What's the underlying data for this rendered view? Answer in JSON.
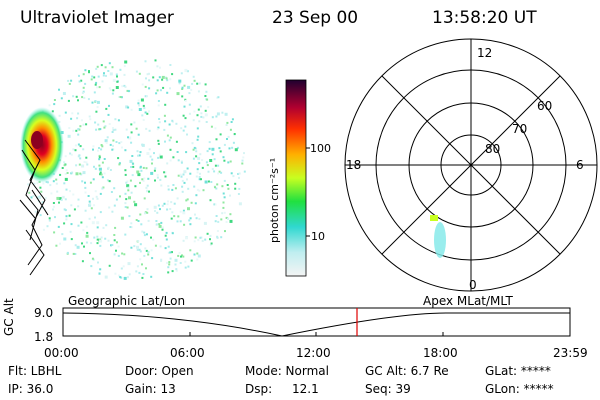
{
  "header": {
    "instrument": "Ultraviolet Imager",
    "date": "23 Sep 00",
    "time": "13:58:20 UT"
  },
  "colorbar": {
    "unit_label": "photon cm⁻²s⁻¹",
    "tick_labels": [
      "100",
      "10"
    ]
  },
  "polar_plot": {
    "mlt_labels": {
      "top": "12",
      "left": "18",
      "right": "6",
      "bottom": "0"
    },
    "lat_labels": [
      "60",
      "70",
      "80"
    ]
  },
  "timeline": {
    "left_title": "Geographic Lat/Lon",
    "right_title": "Apex MLat/MLT",
    "y_axis_label": "GC Alt",
    "y_ticks": [
      "9.0",
      "1.8"
    ],
    "x_ticks": [
      "00:00",
      "06:00",
      "12:00",
      "18:00",
      "23:59"
    ],
    "current_marker_color": "#e00000"
  },
  "status": {
    "flt": "Flt: LBHL",
    "door": "Door: Open",
    "mode": "Mode: Normal",
    "gc_alt": "GC Alt: 6.7 Re",
    "glat": "GLat: *****",
    "ip": "IP: 36.0",
    "gain": "Gain: 13",
    "dsp_label": "Dsp:",
    "dsp_value": "12.1",
    "seq": "Seq: 39",
    "glon": "GLon: *****"
  }
}
